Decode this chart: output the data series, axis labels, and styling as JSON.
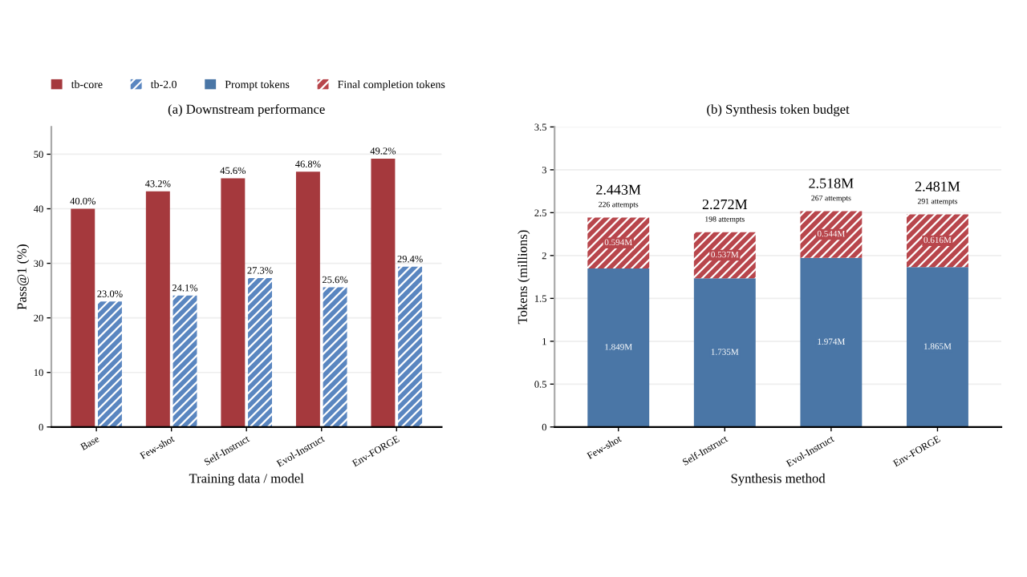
{
  "chart_data": [
    {
      "type": "bar",
      "title": "(a) Downstream performance",
      "xlabel": "Training data / model",
      "ylabel": "Pass@1 (%)",
      "categories": [
        "Base",
        "Few-shot",
        "Self-Instruct",
        "Evol-Instruct",
        "Env-FORGE"
      ],
      "series": [
        {
          "name": "tb-core",
          "color": "#a5393d",
          "values": [
            40.0,
            43.2,
            45.6,
            46.8,
            49.2
          ],
          "value_labels": [
            "40.0%",
            "43.2%",
            "45.6%",
            "46.8%",
            "49.2%"
          ]
        },
        {
          "name": "tb-2.0",
          "color": "#5a86c0",
          "values": [
            23.0,
            24.1,
            27.3,
            25.6,
            29.4
          ],
          "value_labels": [
            "23.0%",
            "24.1%",
            "27.3%",
            "25.6%",
            "29.4%"
          ]
        }
      ],
      "ylim": [
        0,
        55
      ],
      "yticks": [
        0,
        10,
        20,
        30,
        40,
        50
      ],
      "grid": "y",
      "legend": "top"
    },
    {
      "type": "bar",
      "stacked": true,
      "title": "(b) Synthesis token budget",
      "xlabel": "Synthesis method",
      "ylabel": "Tokens (millions)",
      "categories": [
        "Few-shot",
        "Self-Instruct",
        "Evol-Instruct",
        "Env-FORGE"
      ],
      "series": [
        {
          "name": "Prompt tokens",
          "color": "#4a76a6",
          "values": [
            1.849,
            1.735,
            1.974,
            1.865
          ],
          "value_labels": [
            "1.849M",
            "1.735M",
            "1.974M",
            "1.865M"
          ]
        },
        {
          "name": "Final completion tokens",
          "color": "#b8464c",
          "values": [
            0.594,
            0.537,
            0.544,
            0.616
          ],
          "value_labels": [
            "0.594M",
            "0.537M",
            "0.544M",
            "0.616M"
          ]
        }
      ],
      "totals": [
        "2.443M\n226 attempts",
        "2.272M\n198 attempts",
        "2.518M\n267 attempts",
        "2.481M\n291 attempts"
      ],
      "ylim": [
        0,
        3.5
      ],
      "yticks": [
        0,
        0.5,
        1,
        1.5,
        2,
        2.5,
        3,
        3.5
      ],
      "grid": "y",
      "legend": "top"
    }
  ]
}
